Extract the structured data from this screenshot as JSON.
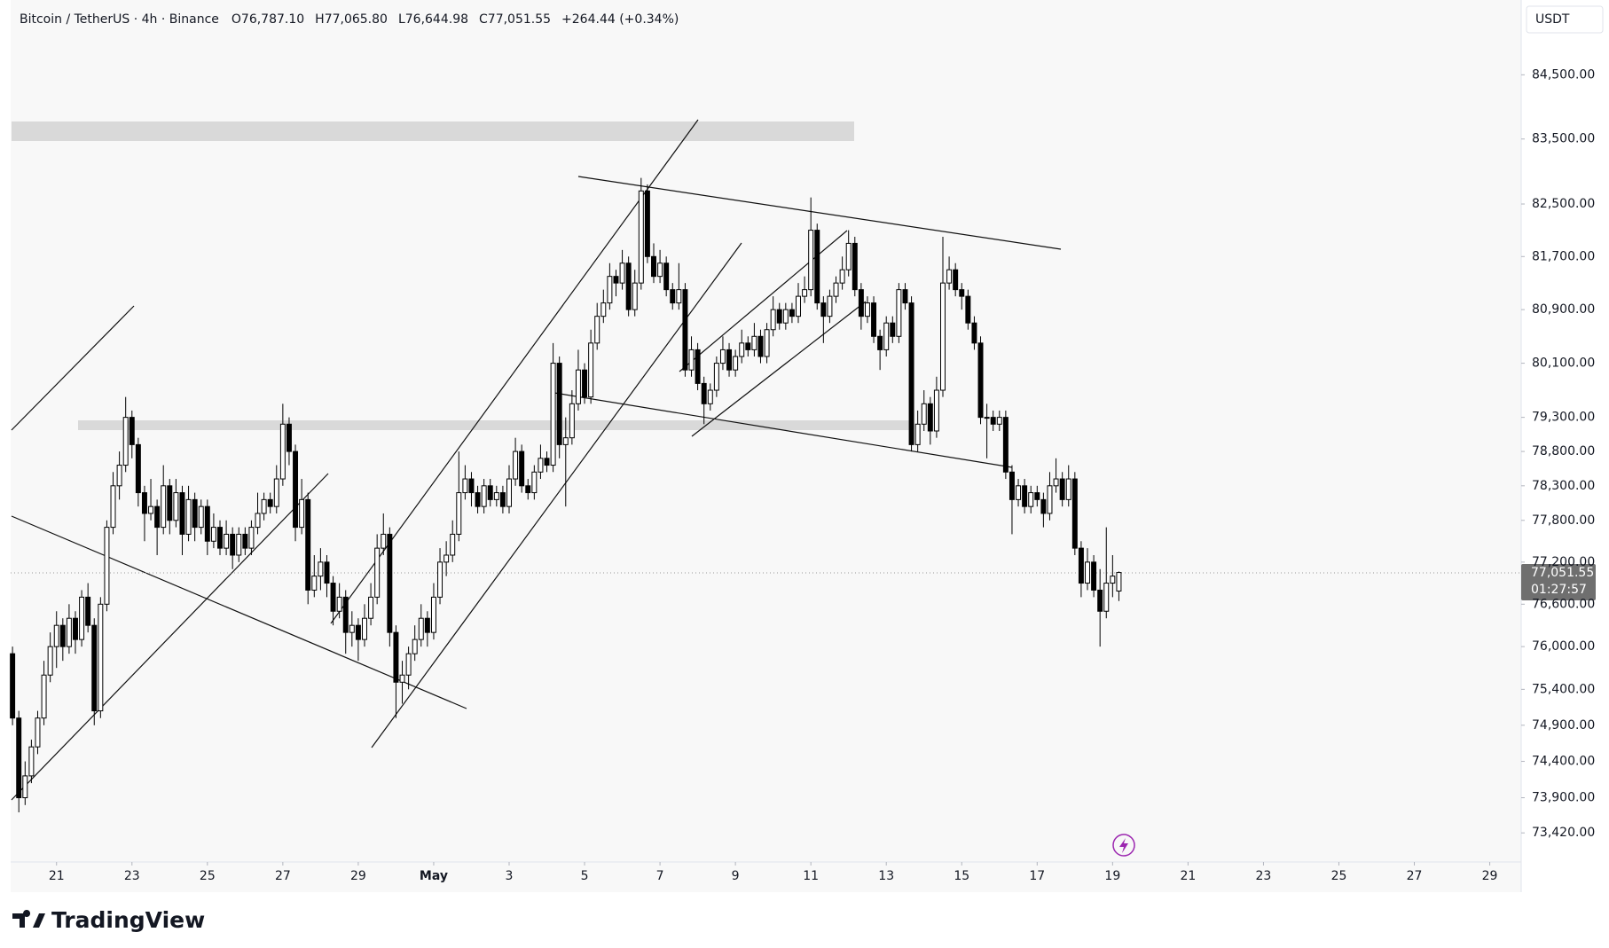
{
  "chart_data": {
    "type": "candlestick",
    "title": "Bitcoin / TetherUS · 4h · Binance",
    "header_values": [
      "O76,787.10",
      "H77,065.80",
      "L76,644.98",
      "C77,051.55",
      "+264.44 (+0.34%)"
    ],
    "currency": "USDT",
    "last_price": {
      "label": "77,051.55",
      "timer": "01:27:57"
    },
    "brand": "TradingView",
    "log_scale": true,
    "up_color": "#ffffff",
    "down_color": "#000000",
    "wick_color": "#000000",
    "ylim": [
      73025,
      85680
    ],
    "yticks": [
      {
        "value": 84500,
        "label": "84,500.00"
      },
      {
        "value": 83500,
        "label": "83,500.00"
      },
      {
        "value": 82500,
        "label": "82,500.00"
      },
      {
        "value": 81700,
        "label": "81,700.00"
      },
      {
        "value": 80900,
        "label": "80,900.00"
      },
      {
        "value": 80100,
        "label": "80,100.00"
      },
      {
        "value": 79300,
        "label": "79,300.00"
      },
      {
        "value": 78800,
        "label": "78,800.00"
      },
      {
        "value": 78300,
        "label": "78,300.00"
      },
      {
        "value": 77800,
        "label": "77,800.00"
      },
      {
        "value": 77200,
        "label": "77,200.00"
      },
      {
        "value": 76600,
        "label": "76,600.00"
      },
      {
        "value": 76000,
        "label": "76,000.00"
      },
      {
        "value": 75400,
        "label": "75,400.00"
      },
      {
        "value": 74900,
        "label": "74,900.00"
      },
      {
        "value": 74400,
        "label": "74,400.00"
      },
      {
        "value": 73900,
        "label": "73,900.00"
      },
      {
        "value": 73420,
        "label": "73,420.00"
      }
    ],
    "xlim": [
      -0.3,
      240
    ],
    "xticks": [
      {
        "value": 7,
        "label": "21"
      },
      {
        "value": 19,
        "label": "23"
      },
      {
        "value": 31,
        "label": "25"
      },
      {
        "value": 43,
        "label": "27"
      },
      {
        "value": 55,
        "label": "29"
      },
      {
        "value": 67,
        "label": "May"
      },
      {
        "value": 79,
        "label": "3"
      },
      {
        "value": 91,
        "label": "5"
      },
      {
        "value": 103,
        "label": "7"
      },
      {
        "value": 115,
        "label": "9"
      },
      {
        "value": 127,
        "label": "11"
      },
      {
        "value": 139,
        "label": "13"
      },
      {
        "value": 151,
        "label": "15"
      },
      {
        "value": 163,
        "label": "17"
      },
      {
        "value": 175,
        "label": "19"
      },
      {
        "value": 187,
        "label": "21"
      },
      {
        "value": 199,
        "label": "23"
      },
      {
        "value": 211,
        "label": "25"
      },
      {
        "value": 223,
        "label": "27"
      },
      {
        "value": 235,
        "label": "29"
      }
    ],
    "ohlc": [
      [
        75900,
        76000,
        74900,
        75000
      ],
      [
        75000,
        75100,
        73700,
        73900
      ],
      [
        73900,
        74400,
        73800,
        74200
      ],
      [
        74200,
        74700,
        74100,
        74600
      ],
      [
        74600,
        75100,
        74500,
        75000
      ],
      [
        75000,
        75800,
        74900,
        75600
      ],
      [
        75600,
        76200,
        75500,
        76000
      ],
      [
        76000,
        76500,
        75700,
        76300
      ],
      [
        76300,
        76400,
        75800,
        76000
      ],
      [
        76000,
        76600,
        75900,
        76400
      ],
      [
        76400,
        76500,
        75900,
        76100
      ],
      [
        76100,
        76800,
        76000,
        76700
      ],
      [
        76700,
        76900,
        76200,
        76300
      ],
      [
        76300,
        76400,
        74900,
        75100
      ],
      [
        75100,
        76700,
        75000,
        76600
      ],
      [
        76600,
        77800,
        76500,
        77700
      ],
      [
        77700,
        78500,
        77600,
        78300
      ],
      [
        78300,
        78800,
        78100,
        78600
      ],
      [
        78600,
        79600,
        78500,
        79300
      ],
      [
        79300,
        79400,
        78700,
        78900
      ],
      [
        78900,
        79000,
        78000,
        78200
      ],
      [
        78200,
        78300,
        77500,
        77900
      ],
      [
        77900,
        78400,
        77800,
        78000
      ],
      [
        78000,
        78100,
        77300,
        77700
      ],
      [
        77700,
        78600,
        77600,
        78300
      ],
      [
        78300,
        78400,
        77600,
        77800
      ],
      [
        77800,
        78400,
        77700,
        78200
      ],
      [
        78200,
        78300,
        77300,
        77600
      ],
      [
        77600,
        78300,
        77500,
        78100
      ],
      [
        78100,
        78200,
        77500,
        77700
      ],
      [
        77700,
        78100,
        77600,
        78000
      ],
      [
        78000,
        78100,
        77300,
        77500
      ],
      [
        77500,
        77900,
        77400,
        77700
      ],
      [
        77700,
        77800,
        77300,
        77400
      ],
      [
        77400,
        77800,
        77300,
        77600
      ],
      [
        77600,
        77700,
        77100,
        77300
      ],
      [
        77300,
        77700,
        77200,
        77600
      ],
      [
        77600,
        77700,
        77300,
        77400
      ],
      [
        77400,
        77800,
        77300,
        77700
      ],
      [
        77700,
        78200,
        77600,
        77900
      ],
      [
        77900,
        78200,
        77800,
        78100
      ],
      [
        78100,
        78200,
        77900,
        78000
      ],
      [
        78000,
        78600,
        77900,
        78400
      ],
      [
        78400,
        79500,
        78300,
        79200
      ],
      [
        79200,
        79300,
        78600,
        78800
      ],
      [
        78800,
        78900,
        77500,
        77700
      ],
      [
        77700,
        78400,
        77600,
        78100
      ],
      [
        78100,
        78200,
        76600,
        76800
      ],
      [
        76800,
        77300,
        76700,
        77000
      ],
      [
        77000,
        77400,
        76800,
        77200
      ],
      [
        77200,
        77300,
        76700,
        76900
      ],
      [
        76900,
        77000,
        76300,
        76500
      ],
      [
        76500,
        76900,
        76400,
        76700
      ],
      [
        76700,
        76800,
        75900,
        76200
      ],
      [
        76200,
        76500,
        76000,
        76300
      ],
      [
        76300,
        76400,
        75800,
        76100
      ],
      [
        76100,
        76600,
        76000,
        76400
      ],
      [
        76400,
        76900,
        76300,
        76700
      ],
      [
        76700,
        77600,
        76600,
        77400
      ],
      [
        77400,
        77900,
        77300,
        77600
      ],
      [
        77600,
        77700,
        76000,
        76200
      ],
      [
        76200,
        76300,
        75000,
        75500
      ],
      [
        75500,
        75800,
        75200,
        75600
      ],
      [
        75600,
        76000,
        75400,
        75900
      ],
      [
        75900,
        76300,
        75800,
        76100
      ],
      [
        76100,
        76600,
        76000,
        76400
      ],
      [
        76400,
        76500,
        76000,
        76200
      ],
      [
        76200,
        76900,
        76100,
        76700
      ],
      [
        76700,
        77400,
        76600,
        77200
      ],
      [
        77200,
        77500,
        77000,
        77300
      ],
      [
        77300,
        77800,
        77200,
        77600
      ],
      [
        77600,
        78800,
        77500,
        78200
      ],
      [
        78200,
        78600,
        78100,
        78400
      ],
      [
        78400,
        78500,
        78000,
        78200
      ],
      [
        78200,
        78300,
        77900,
        78000
      ],
      [
        78000,
        78400,
        77900,
        78300
      ],
      [
        78300,
        78400,
        78000,
        78100
      ],
      [
        78100,
        78300,
        78000,
        78200
      ],
      [
        78200,
        78300,
        77900,
        78000
      ],
      [
        78000,
        78600,
        77900,
        78400
      ],
      [
        78400,
        79000,
        78300,
        78800
      ],
      [
        78800,
        78900,
        78200,
        78300
      ],
      [
        78300,
        78400,
        78100,
        78200
      ],
      [
        78200,
        78600,
        78100,
        78500
      ],
      [
        78500,
        78900,
        78400,
        78700
      ],
      [
        78700,
        78800,
        78500,
        78600
      ],
      [
        78600,
        80400,
        78500,
        80100
      ],
      [
        80100,
        80200,
        78700,
        78900
      ],
      [
        78900,
        79300,
        78000,
        79000
      ],
      [
        79000,
        79700,
        78900,
        79500
      ],
      [
        79500,
        80300,
        79400,
        80000
      ],
      [
        80000,
        80100,
        79500,
        79600
      ],
      [
        79600,
        80600,
        79500,
        80400
      ],
      [
        80400,
        81000,
        80300,
        80800
      ],
      [
        80800,
        81200,
        80700,
        81000
      ],
      [
        81000,
        81600,
        80900,
        81400
      ],
      [
        81400,
        81500,
        81100,
        81300
      ],
      [
        81300,
        81800,
        81200,
        81600
      ],
      [
        81600,
        81700,
        80800,
        80900
      ],
      [
        80900,
        81500,
        80800,
        81300
      ],
      [
        81300,
        82900,
        81200,
        82700
      ],
      [
        82700,
        82800,
        81600,
        81700
      ],
      [
        81700,
        81900,
        81300,
        81400
      ],
      [
        81400,
        81800,
        81300,
        81600
      ],
      [
        81600,
        81700,
        81100,
        81200
      ],
      [
        81200,
        81300,
        80900,
        81000
      ],
      [
        81000,
        81600,
        80900,
        81200
      ],
      [
        81200,
        81300,
        79900,
        80000
      ],
      [
        80000,
        80500,
        79900,
        80300
      ],
      [
        80300,
        80400,
        79700,
        79800
      ],
      [
        79800,
        79900,
        79200,
        79500
      ],
      [
        79500,
        79800,
        79400,
        79700
      ],
      [
        79700,
        80200,
        79600,
        80100
      ],
      [
        80100,
        80500,
        80000,
        80300
      ],
      [
        80300,
        80400,
        79900,
        80000
      ],
      [
        80000,
        80300,
        79900,
        80200
      ],
      [
        80200,
        80600,
        80100,
        80400
      ],
      [
        80400,
        80500,
        80200,
        80300
      ],
      [
        80300,
        80700,
        80200,
        80500
      ],
      [
        80500,
        80600,
        80100,
        80200
      ],
      [
        80200,
        80700,
        80100,
        80600
      ],
      [
        80600,
        81100,
        80500,
        80900
      ],
      [
        80900,
        81000,
        80600,
        80700
      ],
      [
        80700,
        81000,
        80600,
        80900
      ],
      [
        80900,
        81000,
        80700,
        80800
      ],
      [
        80800,
        81300,
        80700,
        81100
      ],
      [
        81100,
        81400,
        81000,
        81200
      ],
      [
        81200,
        82600,
        81100,
        82100
      ],
      [
        82100,
        82200,
        80900,
        81000
      ],
      [
        81000,
        81100,
        80400,
        80800
      ],
      [
        80800,
        81200,
        80700,
        81100
      ],
      [
        81100,
        81400,
        81000,
        81300
      ],
      [
        81300,
        81700,
        81200,
        81500
      ],
      [
        81500,
        82100,
        81400,
        81900
      ],
      [
        81900,
        82000,
        81100,
        81200
      ],
      [
        81200,
        81300,
        80600,
        80800
      ],
      [
        80800,
        81100,
        80700,
        81000
      ],
      [
        81000,
        81100,
        80400,
        80500
      ],
      [
        80500,
        80600,
        80000,
        80300
      ],
      [
        80300,
        80800,
        80200,
        80700
      ],
      [
        80700,
        80800,
        80400,
        80500
      ],
      [
        80500,
        81300,
        80400,
        81200
      ],
      [
        81200,
        81300,
        80900,
        81000
      ],
      [
        81000,
        81100,
        78800,
        78900
      ],
      [
        78900,
        79400,
        78800,
        79200
      ],
      [
        79200,
        79700,
        79100,
        79500
      ],
      [
        79500,
        79600,
        78900,
        79100
      ],
      [
        79100,
        79900,
        79000,
        79700
      ],
      [
        79700,
        82000,
        79600,
        81300
      ],
      [
        81300,
        81700,
        81200,
        81500
      ],
      [
        81500,
        81600,
        81100,
        81200
      ],
      [
        81200,
        81300,
        80900,
        81100
      ],
      [
        81100,
        81200,
        80600,
        80700
      ],
      [
        80700,
        80800,
        80300,
        80400
      ],
      [
        80400,
        80500,
        79200,
        79300
      ],
      [
        79300,
        79500,
        78700,
        79300
      ],
      [
        79300,
        79400,
        79100,
        79200
      ],
      [
        79200,
        79400,
        79100,
        79300
      ],
      [
        79300,
        79400,
        78400,
        78500
      ],
      [
        78500,
        78600,
        77600,
        78100
      ],
      [
        78100,
        78400,
        78000,
        78300
      ],
      [
        78300,
        78400,
        77900,
        78000
      ],
      [
        78000,
        78300,
        77900,
        78200
      ],
      [
        78200,
        78300,
        78000,
        78100
      ],
      [
        78100,
        78200,
        77700,
        77900
      ],
      [
        77900,
        78500,
        77800,
        78300
      ],
      [
        78300,
        78700,
        78200,
        78400
      ],
      [
        78400,
        78500,
        78000,
        78100
      ],
      [
        78100,
        78600,
        78000,
        78400
      ],
      [
        78400,
        78500,
        77300,
        77400
      ],
      [
        77400,
        77500,
        76700,
        76900
      ],
      [
        76900,
        77400,
        76800,
        77200
      ],
      [
        77200,
        77300,
        76700,
        76800
      ],
      [
        76800,
        77100,
        76000,
        76500
      ],
      [
        76500,
        77700,
        76400,
        76900
      ],
      [
        76900,
        77300,
        76700,
        77000
      ],
      [
        76787.1,
        77065.8,
        76644.98,
        77051.55
      ]
    ]
  }
}
